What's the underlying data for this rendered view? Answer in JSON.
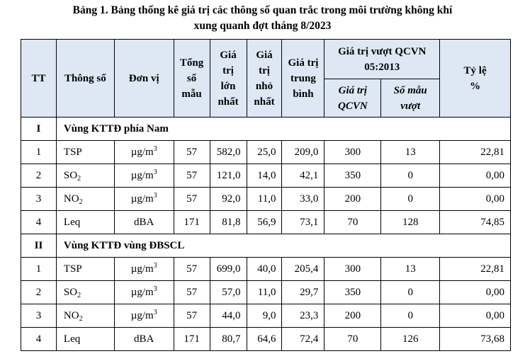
{
  "title_line1": "Bảng 1. Bảng thống kê giá trị các thông số quan trắc trong môi trường không khí",
  "title_line2": "xung quanh đợt tháng 8/2023",
  "headers": {
    "tt": "TT",
    "param": "Thông số",
    "unit": "Đơn vị",
    "total": [
      "Tổng",
      "số",
      "mẫu"
    ],
    "max": [
      "Giá",
      "trị",
      "lớn",
      "nhất"
    ],
    "min": [
      "Giá",
      "trị",
      "nhỏ",
      "nhất"
    ],
    "avg": [
      "Giá trị",
      "trung",
      "bình"
    ],
    "exceed": [
      "Giá trị vượt QCVN",
      "05:2013"
    ],
    "qcvn": [
      "Giá trị",
      "QCVN"
    ],
    "samples_over": [
      "Số mẫu",
      "vượt"
    ],
    "ratio": [
      "Tỷ lệ",
      "%"
    ]
  },
  "groups": [
    {
      "id": "I",
      "name": "Vùng KTTĐ phía Nam",
      "rows": [
        {
          "tt": "1",
          "param": "TSP",
          "param_sub": "",
          "unit_base": "µg/m",
          "unit_sup": "3",
          "total": "57",
          "max": "582,0",
          "min": "25,0",
          "avg": "209,0",
          "qcvn": "300",
          "over": "13",
          "ratio": "22,81"
        },
        {
          "tt": "2",
          "param": "SO",
          "param_sub": "2",
          "unit_base": "µg/m",
          "unit_sup": "3",
          "total": "57",
          "max": "121,0",
          "min": "14,0",
          "avg": "42,1",
          "qcvn": "350",
          "over": "0",
          "ratio": "0,00"
        },
        {
          "tt": "3",
          "param": "NO",
          "param_sub": "2",
          "unit_base": "µg/m",
          "unit_sup": "3",
          "total": "57",
          "max": "92,0",
          "min": "11,0",
          "avg": "33,0",
          "qcvn": "200",
          "over": "0",
          "ratio": "0,00"
        },
        {
          "tt": "4",
          "param": "Leq",
          "param_sub": "",
          "unit_base": "dBA",
          "unit_sup": "",
          "total": "171",
          "max": "81,8",
          "min": "56,9",
          "avg": "73,1",
          "qcvn": "70",
          "over": "128",
          "ratio": "74,85"
        }
      ]
    },
    {
      "id": "II",
      "name": "Vùng KTTĐ vùng ĐBSCL",
      "rows": [
        {
          "tt": "1",
          "param": "TSP",
          "param_sub": "",
          "unit_base": "µg/m",
          "unit_sup": "3",
          "total": "57",
          "max": "699,0",
          "min": "40,0",
          "avg": "205,4",
          "qcvn": "300",
          "over": "13",
          "ratio": "22,81"
        },
        {
          "tt": "2",
          "param": "SO",
          "param_sub": "2",
          "unit_base": "µg/m",
          "unit_sup": "3",
          "total": "57",
          "max": "57,0",
          "min": "11,0",
          "avg": "29,7",
          "qcvn": "350",
          "over": "0",
          "ratio": "0,00"
        },
        {
          "tt": "3",
          "param": "NO",
          "param_sub": "2",
          "unit_base": "µg/m",
          "unit_sup": "3",
          "total": "57",
          "max": "44,0",
          "min": "9,0",
          "avg": "23,3",
          "qcvn": "200",
          "over": "0",
          "ratio": "0,00"
        },
        {
          "tt": "4",
          "param": "Leq",
          "param_sub": "",
          "unit_base": "dBA",
          "unit_sup": "",
          "total": "171",
          "max": "80,7",
          "min": "64,6",
          "avg": "72,4",
          "qcvn": "70",
          "over": "126",
          "ratio": "73,68"
        }
      ]
    }
  ],
  "colors": {
    "header_bg": "#dde8f4",
    "border": "#000000"
  }
}
